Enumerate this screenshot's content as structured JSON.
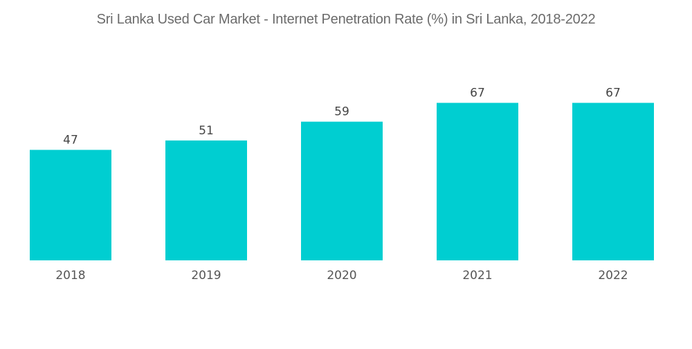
{
  "chart_data": {
    "type": "bar",
    "title": "Sri Lanka Used Car Market - Internet Penetration Rate (%) in Sri Lanka, 2018-2022",
    "xlabel": "",
    "ylabel": "",
    "categories": [
      "2018",
      "2019",
      "2020",
      "2021",
      "2022"
    ],
    "values": [
      47,
      51,
      59,
      67,
      67
    ],
    "ylim": [
      0,
      70
    ],
    "grid": false,
    "legend": "none",
    "bar_color": "#00ced1"
  }
}
